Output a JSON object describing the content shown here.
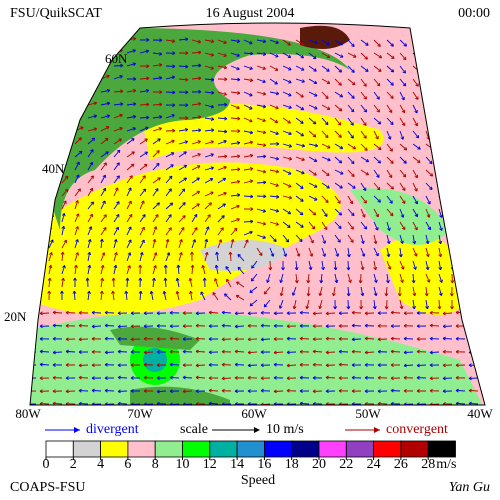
{
  "header": {
    "left": "FSU/QuikSCAT",
    "center": "16 August 2004",
    "right": "00:00"
  },
  "map": {
    "lat_labels": [
      "60N",
      "40N",
      "20N"
    ],
    "lon_labels": [
      "80W",
      "70W",
      "60W",
      "50W",
      "40W"
    ]
  },
  "legend": {
    "divergent": "divergent",
    "scale": "scale",
    "scale_value": "10 m/s",
    "convergent": "convergent"
  },
  "colorbar": {
    "ticks": [
      0,
      2,
      4,
      6,
      8,
      10,
      12,
      14,
      16,
      18,
      20,
      22,
      24,
      26,
      28
    ],
    "unit": "m/s",
    "title": "Speed",
    "colors": [
      "#ffffff",
      "#d3d3d3",
      "#ffff00",
      "#ffc0cb",
      "#90ee90",
      "#00ff00",
      "#00b0a0",
      "#2090d0",
      "#0000ff",
      "#00008b",
      "#ff40ff",
      "#9040c0",
      "#ff0000",
      "#b00000",
      "#000000"
    ]
  },
  "footer": {
    "left": "COAPS-FSU",
    "right": "Yan Gu"
  }
}
